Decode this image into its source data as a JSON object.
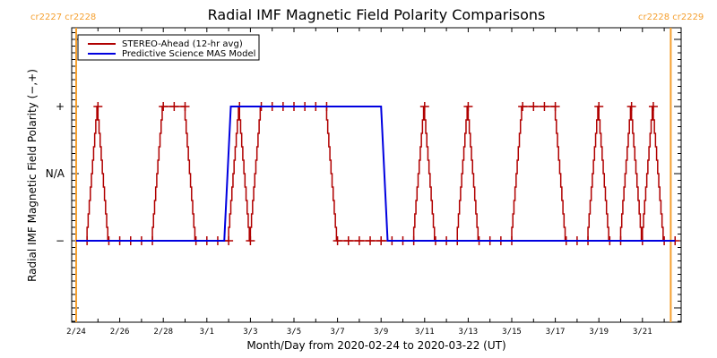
{
  "chart_data": {
    "type": "line",
    "title": "Radial IMF Magnetic Field Polarity Comparisons",
    "xlabel": "Month/Day from 2020-02-24 to 2020-03-22 (UT)",
    "ylabel": "Radial IMF Magnetic Field Polarity (−,+)",
    "x_units": "days since 2020-02-24 00:00 UT",
    "xlim": [
      0,
      27.5
    ],
    "ylim": [
      -2.2,
      2.2
    ],
    "y_ticks": [
      {
        "value": 1,
        "label": "+"
      },
      {
        "value": 0,
        "label": "N/A"
      },
      {
        "value": -1,
        "label": "−"
      }
    ],
    "x_tick_labels": [
      {
        "day": 0,
        "label": "2/24"
      },
      {
        "day": 2,
        "label": "2/26"
      },
      {
        "day": 4,
        "label": "2/28"
      },
      {
        "day": 6,
        "label": "3/1"
      },
      {
        "day": 8,
        "label": "3/3"
      },
      {
        "day": 10,
        "label": "3/5"
      },
      {
        "day": 12,
        "label": "3/7"
      },
      {
        "day": 14,
        "label": "3/9"
      },
      {
        "day": 16,
        "label": "3/11"
      },
      {
        "day": 18,
        "label": "3/13"
      },
      {
        "day": 20,
        "label": "3/15"
      },
      {
        "day": 22,
        "label": "3/17"
      },
      {
        "day": 24,
        "label": "3/19"
      },
      {
        "day": 26,
        "label": "3/21"
      }
    ],
    "carrington_boundaries": [
      {
        "day": 0,
        "label": "cr2227 cr2228"
      },
      {
        "day": 27.3,
        "label": "cr2228 cr2229"
      }
    ],
    "legend": {
      "position": "top-left",
      "entries": [
        "STEREO-Ahead (12-hr avg)",
        "Predictive Science MAS Model"
      ]
    },
    "series": [
      {
        "name": "STEREO-Ahead (12-hr avg)",
        "color": "#b00000",
        "markers": "plus",
        "x": [
          0.5,
          1.0,
          1.5,
          2.0,
          2.5,
          3.0,
          3.5,
          4.0,
          4.5,
          5.0,
          5.5,
          6.0,
          6.5,
          7.0,
          7.5,
          8.0,
          8.5,
          9.0,
          9.5,
          10.0,
          10.5,
          11.0,
          11.5,
          12.0,
          12.5,
          13.0,
          13.5,
          14.0,
          14.5,
          15.0,
          15.5,
          16.0,
          16.5,
          17.0,
          17.5,
          18.0,
          18.5,
          19.0,
          19.5,
          20.0,
          20.5,
          21.0,
          21.5,
          22.0,
          22.5,
          23.0,
          23.5,
          24.0,
          24.5,
          25.0,
          25.5,
          26.0,
          26.5,
          27.0,
          27.5
        ],
        "y": [
          -1,
          1,
          -1,
          -1,
          -1,
          -1,
          -1,
          1,
          1,
          1,
          -1,
          -1,
          -1,
          -1,
          1,
          -1,
          1,
          1,
          1,
          1,
          1,
          1,
          1,
          -1,
          -1,
          -1,
          -1,
          -1,
          -1,
          -1,
          -1,
          1,
          -1,
          -1,
          -1,
          1,
          -1,
          -1,
          -1,
          -1,
          1,
          1,
          1,
          1,
          -1,
          -1,
          -1,
          1,
          -1,
          -1,
          1,
          -1,
          1,
          -1,
          -1
        ]
      },
      {
        "name": "Predictive Science MAS Model",
        "color": "#0000e0",
        "x": [
          0,
          6.8,
          7.1,
          14.0,
          14.3,
          27.5
        ],
        "y": [
          -1,
          -1,
          1,
          1,
          -1,
          -1
        ]
      }
    ]
  },
  "colors": {
    "carrington": "#f5a030",
    "stereo": "#b00000",
    "model": "#0000e0"
  }
}
